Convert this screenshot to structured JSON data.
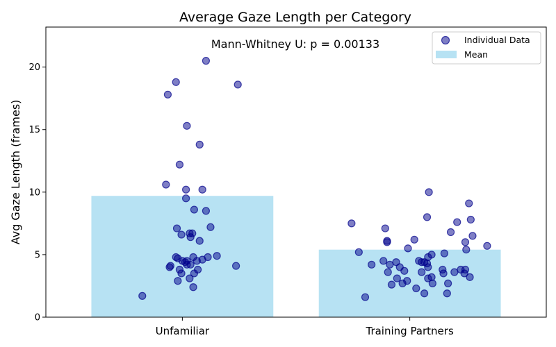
{
  "chart_data": {
    "type": "bar",
    "title": "Average Gaze Length per Category",
    "annotation": "Mann-Whitney U: p = 0.00133",
    "ylabel": "Avg Gaze Length (frames)",
    "xlabel": "",
    "ylim": [
      0,
      23.2
    ],
    "yticks": [
      0,
      5,
      10,
      15,
      20
    ],
    "categories": [
      "Unfamiliar",
      "Training Partners"
    ],
    "legend": {
      "position": "top-right",
      "points_label": "Individual Data",
      "bars_label": "Mean"
    },
    "colors": {
      "bar": "#87ceeb",
      "point_fill": "#00008b",
      "point_edge": "#00008b"
    },
    "series": [
      {
        "name": "Mean",
        "values": [
          9.7,
          5.4
        ]
      },
      {
        "name": "Individual Data",
        "points": [
          [
            {
              "x": -0.44,
              "y": 1.7
            },
            {
              "x": -0.14,
              "y": 4.0
            },
            {
              "x": -0.13,
              "y": 4.1
            },
            {
              "x": -0.05,
              "y": 2.9
            },
            {
              "x": -0.01,
              "y": 3.5
            },
            {
              "x": -0.05,
              "y": 4.7
            },
            {
              "x": 0.0,
              "y": 4.5
            },
            {
              "x": 0.03,
              "y": 4.4
            },
            {
              "x": 0.05,
              "y": 4.2
            },
            {
              "x": -0.03,
              "y": 3.8
            },
            {
              "x": 0.08,
              "y": 3.1
            },
            {
              "x": 0.12,
              "y": 2.4
            },
            {
              "x": 0.13,
              "y": 3.5
            },
            {
              "x": 0.17,
              "y": 3.8
            },
            {
              "x": 0.12,
              "y": 4.8
            },
            {
              "x": 0.16,
              "y": 4.5
            },
            {
              "x": 0.22,
              "y": 4.6
            },
            {
              "x": 0.28,
              "y": 4.8
            },
            {
              "x": 0.38,
              "y": 4.9
            },
            {
              "x": 0.05,
              "y": 4.5
            },
            {
              "x": 0.09,
              "y": 4.2
            },
            {
              "x": -0.07,
              "y": 4.8
            },
            {
              "x": -0.01,
              "y": 6.6
            },
            {
              "x": 0.08,
              "y": 6.7
            },
            {
              "x": 0.11,
              "y": 6.7
            },
            {
              "x": 0.09,
              "y": 6.4
            },
            {
              "x": -0.06,
              "y": 7.1
            },
            {
              "x": 0.19,
              "y": 6.1
            },
            {
              "x": 0.31,
              "y": 7.2
            },
            {
              "x": 0.13,
              "y": 8.6
            },
            {
              "x": 0.26,
              "y": 8.5
            },
            {
              "x": 0.04,
              "y": 9.5
            },
            {
              "x": -0.18,
              "y": 10.6
            },
            {
              "x": 0.04,
              "y": 10.2
            },
            {
              "x": 0.22,
              "y": 10.2
            },
            {
              "x": -0.03,
              "y": 12.2
            },
            {
              "x": 0.19,
              "y": 13.8
            },
            {
              "x": 0.05,
              "y": 15.3
            },
            {
              "x": -0.16,
              "y": 17.8
            },
            {
              "x": -0.07,
              "y": 18.8
            },
            {
              "x": 0.26,
              "y": 20.5
            },
            {
              "x": 0.61,
              "y": 18.6
            },
            {
              "x": 0.59,
              "y": 4.1
            }
          ],
          [
            {
              "x": -0.49,
              "y": 1.6
            },
            {
              "x": 0.16,
              "y": 1.9
            },
            {
              "x": 0.07,
              "y": 2.3
            },
            {
              "x": 0.25,
              "y": 2.7
            },
            {
              "x": -0.2,
              "y": 2.6
            },
            {
              "x": -0.08,
              "y": 2.7
            },
            {
              "x": 0.41,
              "y": 1.9
            },
            {
              "x": 0.42,
              "y": 2.7
            },
            {
              "x": -0.03,
              "y": 2.9
            },
            {
              "x": -0.14,
              "y": 3.1
            },
            {
              "x": 0.24,
              "y": 3.2
            },
            {
              "x": 0.2,
              "y": 3.1
            },
            {
              "x": 0.37,
              "y": 3.5
            },
            {
              "x": 0.49,
              "y": 3.6
            },
            {
              "x": 0.6,
              "y": 3.5
            },
            {
              "x": 0.66,
              "y": 3.2
            },
            {
              "x": -0.24,
              "y": 3.6
            },
            {
              "x": -0.06,
              "y": 3.7
            },
            {
              "x": 0.13,
              "y": 3.6
            },
            {
              "x": 0.36,
              "y": 3.8
            },
            {
              "x": 0.56,
              "y": 3.8
            },
            {
              "x": 0.61,
              "y": 3.8
            },
            {
              "x": 0.2,
              "y": 4.0
            },
            {
              "x": -0.42,
              "y": 4.2
            },
            {
              "x": -0.22,
              "y": 4.2
            },
            {
              "x": -0.11,
              "y": 4.0
            },
            {
              "x": 0.19,
              "y": 4.3
            },
            {
              "x": 0.1,
              "y": 4.5
            },
            {
              "x": 0.13,
              "y": 4.4
            },
            {
              "x": -0.29,
              "y": 4.5
            },
            {
              "x": 0.16,
              "y": 4.4
            },
            {
              "x": 0.2,
              "y": 4.8
            },
            {
              "x": 0.24,
              "y": 5.0
            },
            {
              "x": 0.38,
              "y": 5.1
            },
            {
              "x": -0.15,
              "y": 4.4
            },
            {
              "x": -0.56,
              "y": 5.2
            },
            {
              "x": -0.02,
              "y": 5.5
            },
            {
              "x": 0.62,
              "y": 5.4
            },
            {
              "x": -0.25,
              "y": 6.0
            },
            {
              "x": -0.25,
              "y": 6.1
            },
            {
              "x": 0.05,
              "y": 6.2
            },
            {
              "x": 0.61,
              "y": 6.0
            },
            {
              "x": 0.69,
              "y": 6.5
            },
            {
              "x": 0.85,
              "y": 5.7
            },
            {
              "x": 0.45,
              "y": 6.8
            },
            {
              "x": -0.27,
              "y": 7.1
            },
            {
              "x": -0.64,
              "y": 7.5
            },
            {
              "x": 0.52,
              "y": 7.6
            },
            {
              "x": 0.67,
              "y": 7.8
            },
            {
              "x": 0.19,
              "y": 8.0
            },
            {
              "x": 0.65,
              "y": 9.1
            },
            {
              "x": 0.21,
              "y": 10.0
            }
          ]
        ]
      }
    ]
  }
}
